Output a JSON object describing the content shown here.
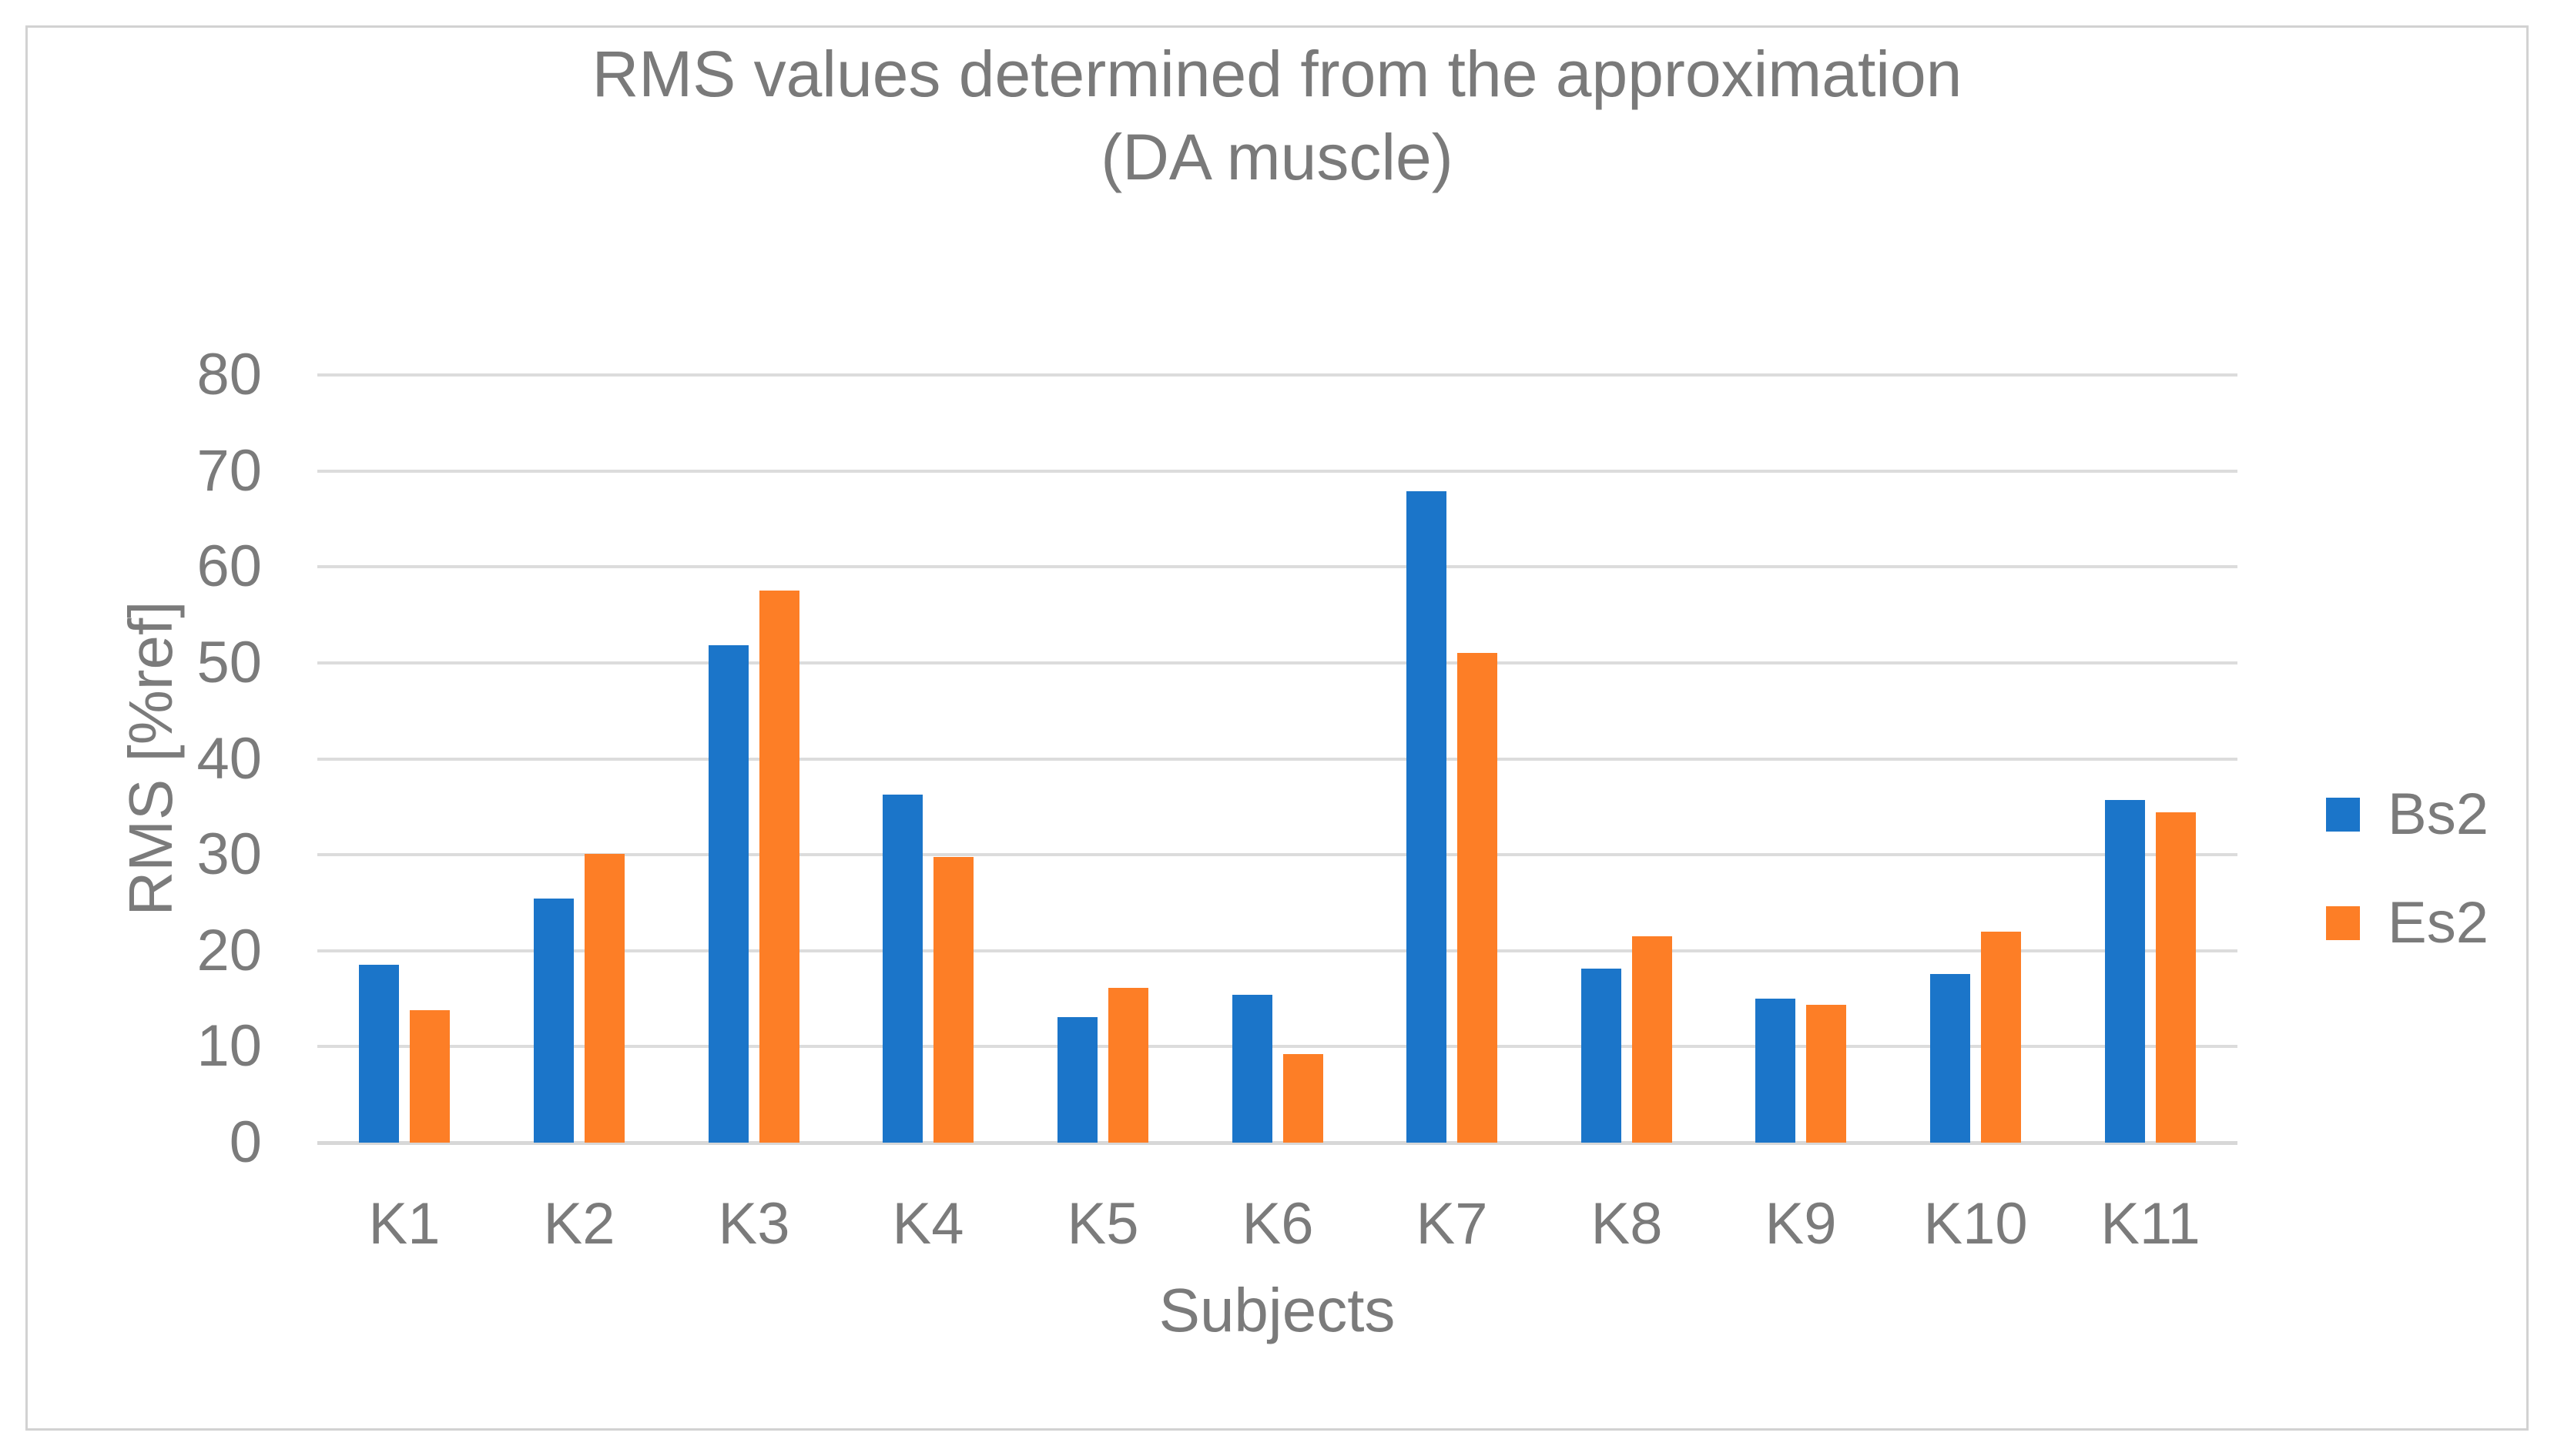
{
  "title": {
    "line1": "RMS values determined from the approximation",
    "line2": "(DA muscle)"
  },
  "y_axis": {
    "label": "RMS [%ref]",
    "ticks": [
      "0",
      "10",
      "20",
      "30",
      "40",
      "50",
      "60",
      "70",
      "80"
    ],
    "min": 0,
    "max": 80
  },
  "x_axis": {
    "label": "Subjects"
  },
  "legend": {
    "items": [
      {
        "label": "Bs2",
        "color": "#1b75c9"
      },
      {
        "label": "Es2",
        "color": "#fd7e26"
      }
    ]
  },
  "colors": {
    "series_blue": "#1b75c9",
    "series_orange": "#fd7e26",
    "gridline": "#dcdcdc",
    "text": "#7b7b7b",
    "frame_border": "#d2d2d2"
  },
  "chart_data": {
    "type": "bar",
    "title": "RMS values determined from the approximation (DA muscle)",
    "xlabel": "Subjects",
    "ylabel": "RMS [%ref]",
    "ylim": [
      0,
      80
    ],
    "ytick_step": 10,
    "grid": true,
    "legend_position": "right",
    "categories": [
      "K1",
      "K2",
      "K3",
      "K4",
      "K5",
      "K6",
      "K7",
      "K8",
      "K9",
      "K10",
      "K11"
    ],
    "series": [
      {
        "name": "Bs2",
        "color": "#1b75c9",
        "values": [
          18.5,
          25.4,
          51.8,
          36.3,
          13.1,
          15.4,
          67.9,
          18.1,
          15.0,
          17.6,
          35.7
        ]
      },
      {
        "name": "Es2",
        "color": "#fd7e26",
        "values": [
          13.8,
          30.1,
          57.5,
          29.8,
          16.1,
          9.2,
          51.0,
          21.5,
          14.4,
          22.0,
          34.4
        ]
      }
    ]
  }
}
